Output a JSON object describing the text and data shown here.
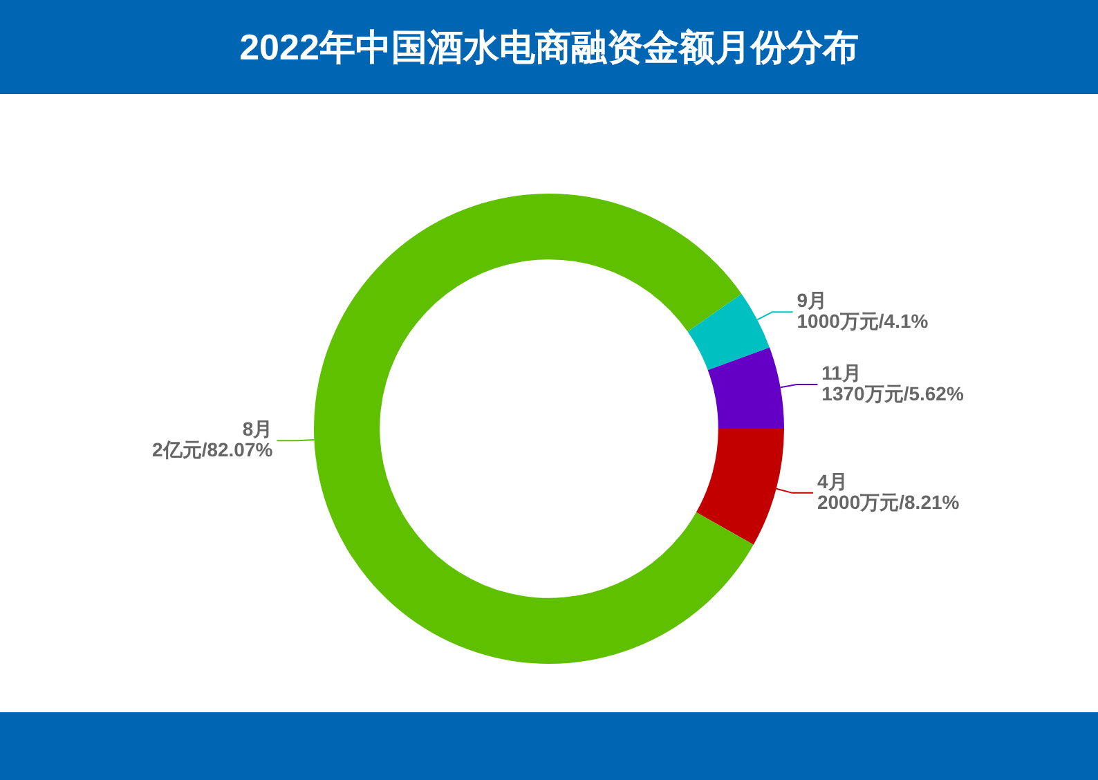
{
  "chart_data": {
    "type": "donut",
    "title": "2022年中国酒水电商融资金额月份分布",
    "categories": [
      "4月",
      "8月",
      "9月",
      "11月"
    ],
    "values": [
      8.21,
      82.07,
      4.1,
      5.62
    ],
    "colors": [
      "#c20000",
      "#5fc000",
      "#00c0c2",
      "#6400c6"
    ],
    "value_labels": [
      "2000万元/8.21%",
      "2亿元/82.07%",
      "1000万元/4.1%",
      "1370万元/5.62%"
    ]
  }
}
